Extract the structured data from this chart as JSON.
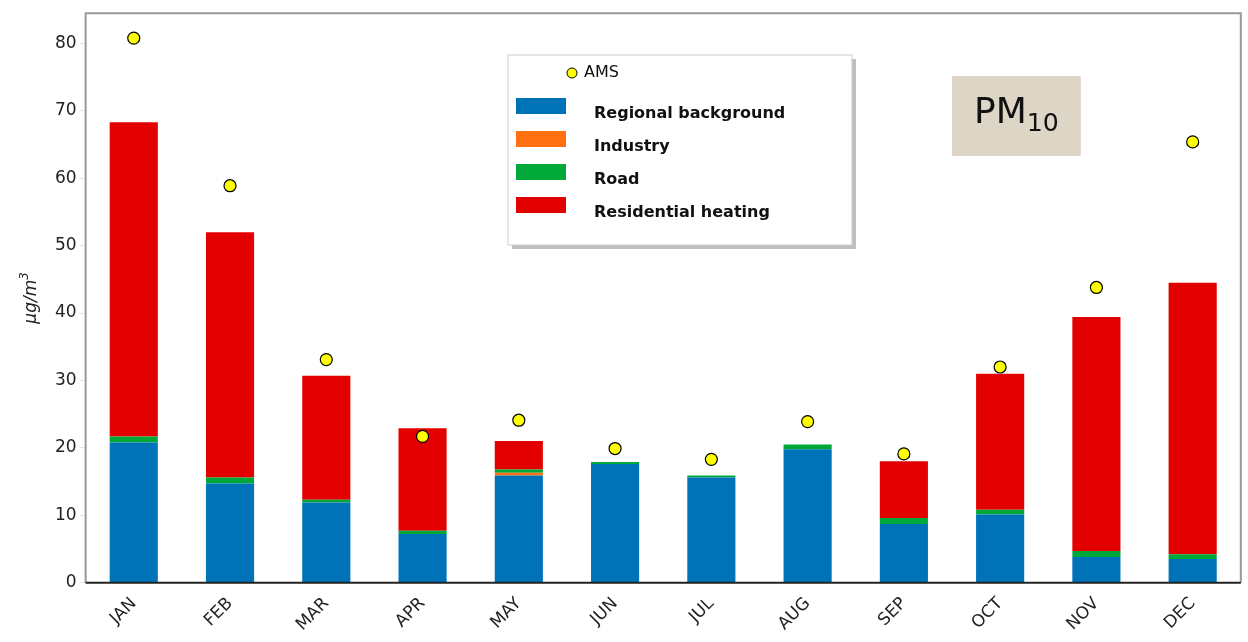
{
  "chart_data": {
    "type": "bar",
    "stacked": true,
    "ylabel": "μg/m$^{3}$",
    "annotations": [
      "PM$_{10}$"
    ],
    "categories": [
      "JAN",
      "FEB",
      "MAR",
      "APR",
      "MAY",
      "JUN",
      "JUL",
      "AUG",
      "SEP",
      "OCT",
      "NOV",
      "DEC"
    ],
    "series": [
      {
        "name": "AMS",
        "type": "scatter",
        "color": "#ffff00",
        "values": [
          80.8,
          58.9,
          33.1,
          21.7,
          24.1,
          19.9,
          18.3,
          23.9,
          19.1,
          32.0,
          43.8,
          65.4
        ]
      },
      {
        "name": "Regional background",
        "color": "#0072b8",
        "values": [
          20.8,
          14.7,
          11.9,
          7.2,
          15.9,
          17.6,
          15.6,
          19.8,
          8.7,
          10.1,
          3.8,
          3.5
        ]
      },
      {
        "name": "Industry",
        "color": "#ff7011",
        "values": [
          0,
          0,
          0,
          0,
          0.4,
          0,
          0,
          0,
          0,
          0,
          0,
          0
        ]
      },
      {
        "name": "Road",
        "color": "#00a83a",
        "values": [
          0.9,
          0.9,
          0.4,
          0.5,
          0.5,
          0.3,
          0.3,
          0.7,
          0.9,
          0.7,
          0.9,
          0.7
        ]
      },
      {
        "name": "Residential heating",
        "color": "#e30000",
        "values": [
          46.6,
          36.4,
          18.4,
          15.2,
          4.2,
          0,
          0,
          0,
          8.4,
          20.2,
          34.7,
          40.3
        ]
      }
    ],
    "ylim": [
      0,
      84.5
    ],
    "yticks": [
      0,
      10,
      20,
      30,
      40,
      50,
      60,
      70,
      80
    ],
    "grid": false,
    "legend": "top",
    "marker": "circle"
  }
}
